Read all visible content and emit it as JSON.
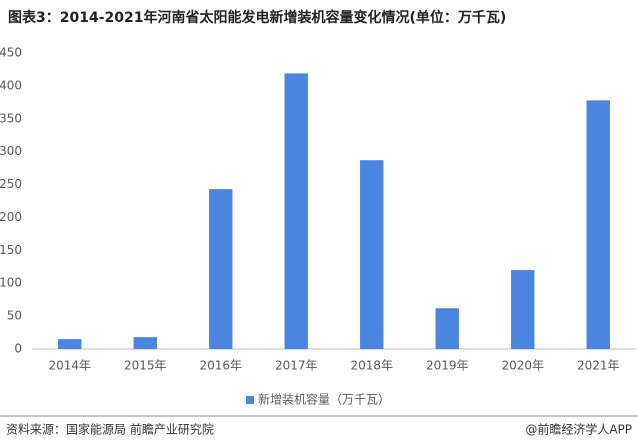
{
  "chart_data": {
    "type": "bar",
    "title": "图表3：2014-2021年河南省太阳能发电新增装机容量变化情况(单位：万千瓦)",
    "categories": [
      "2014年",
      "2015年",
      "2016年",
      "2017年",
      "2018年",
      "2019年",
      "2020年",
      "2021年"
    ],
    "series": [
      {
        "name": "新增装机容量（万千瓦）",
        "color": "#4a86e0",
        "values": [
          15,
          18,
          243,
          419,
          287,
          62,
          120,
          378
        ]
      }
    ],
    "ylim": [
      0,
      450
    ],
    "yticks": [
      0,
      50,
      100,
      150,
      200,
      250,
      300,
      350,
      400,
      450
    ],
    "grid": false,
    "legend": "bottom"
  },
  "footer": {
    "source": "资料来源：国家能源局 前瞻产业研究院",
    "brand": "@前瞻经济学人APP"
  }
}
